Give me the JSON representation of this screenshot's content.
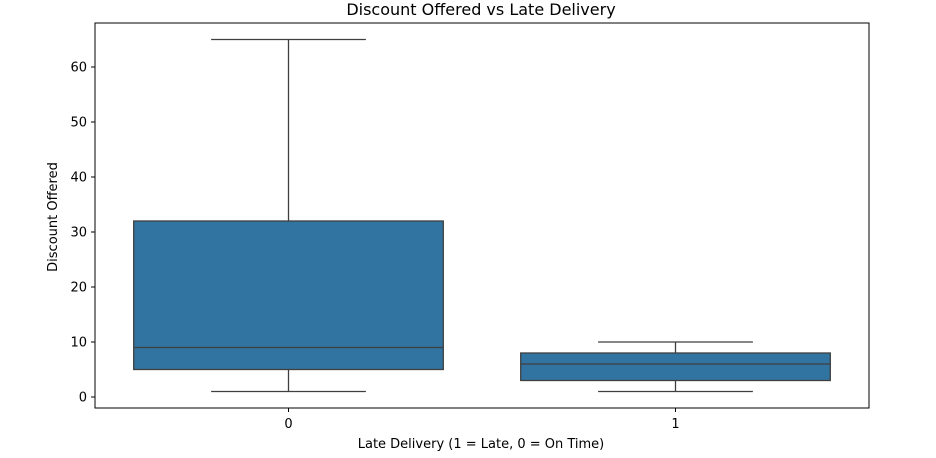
{
  "chart_data": {
    "type": "boxplot",
    "title": "Discount Offered vs Late Delivery",
    "xlabel": "Late Delivery (1 = Late, 0 = On Time)",
    "ylabel": "Discount Offered",
    "categories": [
      "0",
      "1"
    ],
    "boxes": [
      {
        "category": "0",
        "whisker_low": 1,
        "q1": 5,
        "median": 9,
        "q3": 32,
        "whisker_high": 65
      },
      {
        "category": "1",
        "whisker_low": 1,
        "q1": 3,
        "median": 6,
        "q3": 8,
        "whisker_high": 10
      }
    ],
    "ylim": [
      -2,
      68
    ],
    "yticks": [
      0,
      10,
      20,
      30,
      40,
      50,
      60
    ],
    "box_color": "#3274a1",
    "line_color": "#3f3f3f",
    "grid": false,
    "legend": false
  }
}
